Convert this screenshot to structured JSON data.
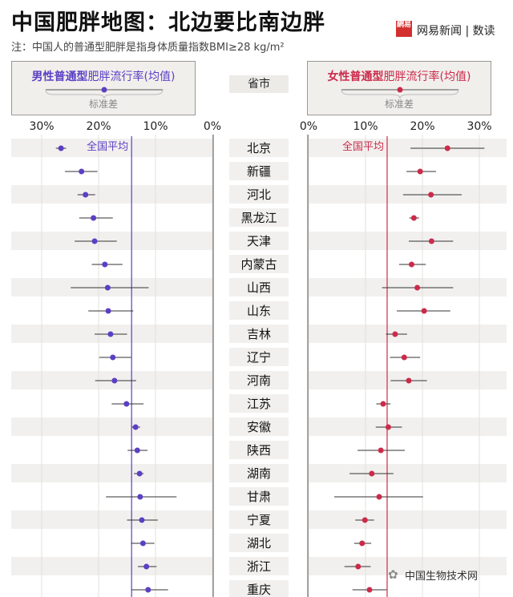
{
  "header": {
    "title": "中国肥胖地图：北边要比南边胖",
    "subtitle": "注：中国人的普通型肥胖是指身体质量指数BMI≥28 kg/m²",
    "logo_text": "網易",
    "brand": "网易新闻 | 数读"
  },
  "legend": {
    "male_bold": "男性普通型",
    "male_rest": "肥胖流行率(均值)",
    "female_bold": "女性普通型",
    "female_rest": "肥胖流行率(均值)",
    "sd_label": "标准差",
    "province_header": "省市"
  },
  "watermark": "中国生物技术网",
  "colors": {
    "male": "#5b3fc4",
    "female": "#cc2a4a",
    "row_shade": "#f1f0ee",
    "legend_bg": "#f1efec"
  },
  "chart_data": [
    {
      "type": "scatter",
      "series_name": "男性普通型肥胖流行率(均值)",
      "x_axis": "reversed",
      "xlim": [
        0,
        30
      ],
      "ticks": [
        "30%",
        "20%",
        "10%",
        "0%"
      ],
      "reference_label": "全国平均",
      "reference_value": 14.2,
      "points": [
        {
          "province": "北京",
          "mean": 26.6,
          "sd_low": 27.5,
          "sd_high": 25.7
        },
        {
          "province": "新疆",
          "mean": 23.0,
          "sd_low": 25.9,
          "sd_high": 20.2
        },
        {
          "province": "河北",
          "mean": 22.3,
          "sd_low": 23.7,
          "sd_high": 20.6
        },
        {
          "province": "黑龙江",
          "mean": 20.9,
          "sd_low": 23.4,
          "sd_high": 17.5
        },
        {
          "province": "天津",
          "mean": 20.7,
          "sd_low": 24.2,
          "sd_high": 16.8
        },
        {
          "province": "内蒙古",
          "mean": 18.9,
          "sd_low": 21.2,
          "sd_high": 15.8
        },
        {
          "province": "山西",
          "mean": 18.4,
          "sd_low": 24.9,
          "sd_high": 11.2
        },
        {
          "province": "山东",
          "mean": 18.3,
          "sd_low": 21.8,
          "sd_high": 13.9
        },
        {
          "province": "吉林",
          "mean": 17.9,
          "sd_low": 20.7,
          "sd_high": 15.0
        },
        {
          "province": "辽宁",
          "mean": 17.5,
          "sd_low": 19.9,
          "sd_high": 14.3
        },
        {
          "province": "河南",
          "mean": 17.2,
          "sd_low": 20.6,
          "sd_high": 13.4
        },
        {
          "province": "江苏",
          "mean": 15.1,
          "sd_low": 17.7,
          "sd_high": 12.1
        },
        {
          "province": "安徽",
          "mean": 13.5,
          "sd_low": 14.2,
          "sd_high": 12.7
        },
        {
          "province": "陕西",
          "mean": 13.2,
          "sd_low": 14.9,
          "sd_high": 11.4
        },
        {
          "province": "湖南",
          "mean": 12.8,
          "sd_low": 13.8,
          "sd_high": 12.1
        },
        {
          "province": "甘肃",
          "mean": 12.7,
          "sd_low": 18.7,
          "sd_high": 6.3
        },
        {
          "province": "宁夏",
          "mean": 12.4,
          "sd_low": 15.0,
          "sd_high": 9.6
        },
        {
          "province": "湖北",
          "mean": 12.2,
          "sd_low": 14.3,
          "sd_high": 10.2
        },
        {
          "province": "浙江",
          "mean": 11.6,
          "sd_low": 13.1,
          "sd_high": 9.8
        },
        {
          "province": "重庆",
          "mean": 11.3,
          "sd_low": 14.2,
          "sd_high": 7.8
        }
      ]
    },
    {
      "type": "scatter",
      "series_name": "女性普通型肥胖流行率(均值)",
      "xlim": [
        0,
        30
      ],
      "ticks": [
        "0%",
        "10%",
        "20%",
        "30%"
      ],
      "reference_label": "全国平均",
      "reference_value": 13.8,
      "points": [
        {
          "province": "北京",
          "mean": 24.4,
          "sd_low": 17.9,
          "sd_high": 30.9
        },
        {
          "province": "新疆",
          "mean": 19.6,
          "sd_low": 17.2,
          "sd_high": 22.4
        },
        {
          "province": "河北",
          "mean": 21.5,
          "sd_low": 16.6,
          "sd_high": 26.9
        },
        {
          "province": "黑龙江",
          "mean": 18.5,
          "sd_low": 17.7,
          "sd_high": 19.4
        },
        {
          "province": "天津",
          "mean": 21.6,
          "sd_low": 17.6,
          "sd_high": 25.4
        },
        {
          "province": "内蒙古",
          "mean": 18.1,
          "sd_low": 15.9,
          "sd_high": 20.6
        },
        {
          "province": "山西",
          "mean": 19.1,
          "sd_low": 12.9,
          "sd_high": 25.4
        },
        {
          "province": "山东",
          "mean": 20.3,
          "sd_low": 15.5,
          "sd_high": 24.9
        },
        {
          "province": "吉林",
          "mean": 15.2,
          "sd_low": 13.6,
          "sd_high": 17.3
        },
        {
          "province": "辽宁",
          "mean": 16.8,
          "sd_low": 14.3,
          "sd_high": 19.6
        },
        {
          "province": "河南",
          "mean": 17.6,
          "sd_low": 14.4,
          "sd_high": 20.8
        },
        {
          "province": "江苏",
          "mean": 13.1,
          "sd_low": 11.9,
          "sd_high": 14.4
        },
        {
          "province": "安徽",
          "mean": 14.0,
          "sd_low": 11.8,
          "sd_high": 16.4
        },
        {
          "province": "陕西",
          "mean": 12.7,
          "sd_low": 8.6,
          "sd_high": 16.9
        },
        {
          "province": "湖南",
          "mean": 11.1,
          "sd_low": 7.2,
          "sd_high": 14.9
        },
        {
          "province": "甘肃",
          "mean": 12.4,
          "sd_low": 4.5,
          "sd_high": 20.1
        },
        {
          "province": "宁夏",
          "mean": 9.9,
          "sd_low": 8.2,
          "sd_high": 11.5
        },
        {
          "province": "湖北",
          "mean": 9.4,
          "sd_low": 8.0,
          "sd_high": 11.0
        },
        {
          "province": "浙江",
          "mean": 8.7,
          "sd_low": 6.3,
          "sd_high": 10.9
        },
        {
          "province": "重庆",
          "mean": 10.7,
          "sd_low": 7.7,
          "sd_high": 13.7
        }
      ]
    }
  ]
}
